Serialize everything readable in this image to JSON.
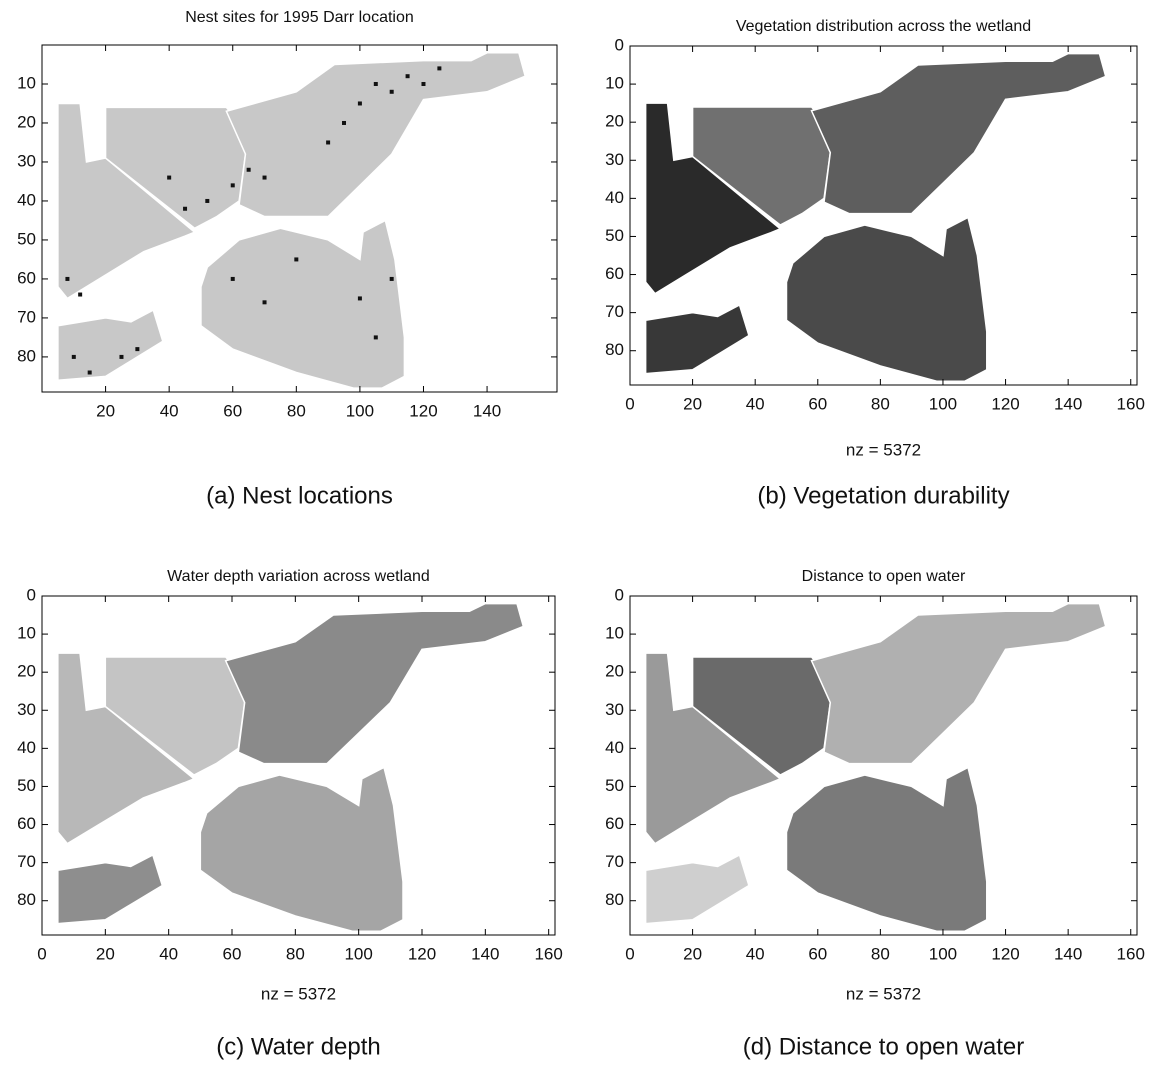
{
  "chart_data": [
    {
      "type": "image",
      "title": "Nest sites for 1995 Darr location",
      "caption": "(a) Nest locations",
      "xlim": [
        0,
        162
      ],
      "ylim": [
        89,
        0
      ],
      "xticks": [
        20,
        40,
        60,
        80,
        100,
        120,
        140
      ],
      "yticks": [
        10,
        20,
        30,
        40,
        50,
        60,
        70,
        80
      ]
    },
    {
      "type": "image",
      "title": "Vegetation distribution across the wetland",
      "xlabel": "nz = 5372",
      "caption": "(b) Vegetation durability",
      "xlim": [
        0,
        162
      ],
      "ylim": [
        89,
        0
      ],
      "xticks": [
        0,
        20,
        40,
        60,
        80,
        100,
        120,
        140,
        160
      ],
      "yticks": [
        0,
        10,
        20,
        30,
        40,
        50,
        60,
        70,
        80
      ]
    },
    {
      "type": "image",
      "title": "Water depth variation across wetland",
      "xlabel": "nz = 5372",
      "caption": "(c) Water depth",
      "xlim": [
        0,
        162
      ],
      "ylim": [
        89,
        0
      ],
      "xticks": [
        0,
        20,
        40,
        60,
        80,
        100,
        120,
        140,
        160
      ],
      "yticks": [
        0,
        10,
        20,
        30,
        40,
        50,
        60,
        70,
        80
      ]
    },
    {
      "type": "image",
      "title": "Distance to open water",
      "xlabel": "nz = 5372",
      "caption": "(d) Distance to open water",
      "xlim": [
        0,
        162
      ],
      "ylim": [
        89,
        0
      ],
      "xticks": [
        0,
        20,
        40,
        60,
        80,
        100,
        120,
        140,
        160
      ],
      "yticks": [
        0,
        10,
        20,
        30,
        40,
        50,
        60,
        70,
        80
      ]
    }
  ]
}
